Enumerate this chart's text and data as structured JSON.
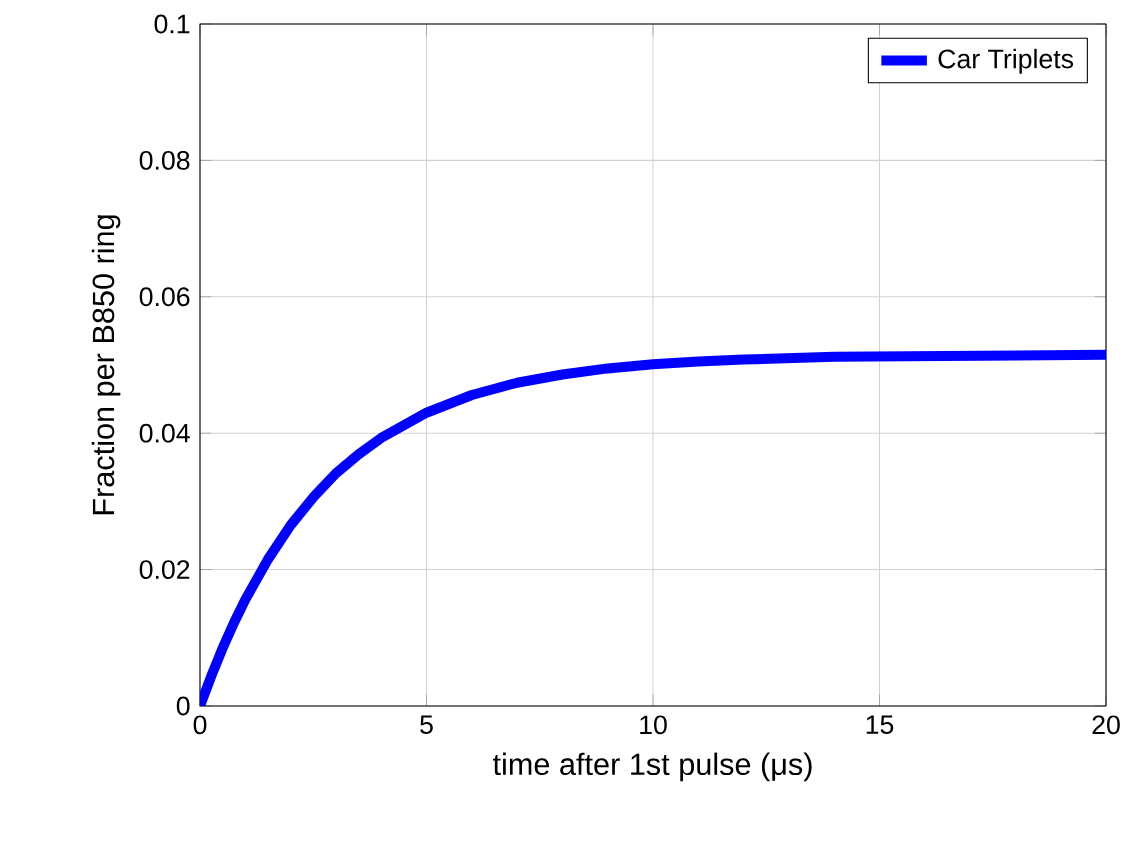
{
  "chart_data": {
    "type": "line",
    "xlabel": "time after 1st pulse (μs)",
    "ylabel": "Fraction per B850 ring",
    "xlim": [
      0,
      20
    ],
    "ylim": [
      0,
      0.1
    ],
    "xticks": [
      0,
      5,
      10,
      15,
      20
    ],
    "yticks": [
      0,
      0.02,
      0.04,
      0.06,
      0.08,
      0.1
    ],
    "grid": true,
    "legend": "top right",
    "line_style": "solid",
    "marker": "none",
    "series": [
      {
        "name": "Car Triplets",
        "color": "#0000ff",
        "x": [
          0,
          0.25,
          0.5,
          0.75,
          1,
          1.5,
          2,
          2.5,
          3,
          3.5,
          4,
          5,
          6,
          7,
          8,
          9,
          10,
          11,
          12,
          14,
          16,
          18,
          20
        ],
        "values": [
          0,
          0.0044,
          0.0085,
          0.0122,
          0.0156,
          0.0215,
          0.0265,
          0.0306,
          0.0341,
          0.0369,
          0.0393,
          0.043,
          0.0456,
          0.0474,
          0.0486,
          0.0495,
          0.0501,
          0.0505,
          0.0508,
          0.0512,
          0.0513,
          0.0514,
          0.0515
        ]
      }
    ]
  }
}
